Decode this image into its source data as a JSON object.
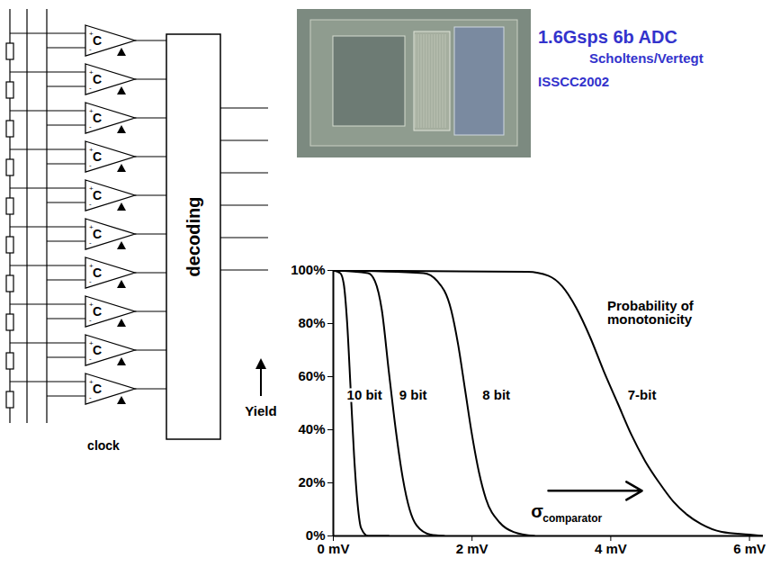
{
  "header": {
    "title": "1.6Gsps 6b ADC",
    "authors": "Scholtens/Vertegt",
    "venue": "ISSCC2002",
    "color": "#3333cc"
  },
  "diagram": {
    "comparators": [
      "C",
      "C",
      "C",
      "C",
      "C",
      "C",
      "C",
      "C",
      "C",
      "C"
    ],
    "inputs": [
      "+",
      "-"
    ],
    "block": "decoding",
    "clock": "clock",
    "outputs": 6
  },
  "chart_data": {
    "type": "line",
    "ylabel": "Yield",
    "xlim": [
      0,
      6.2
    ],
    "xticks": [
      {
        "value": 0,
        "label": "0 mV"
      },
      {
        "value": 2,
        "label": "2 mV"
      },
      {
        "value": 4,
        "label": "4 mV"
      },
      {
        "value": 6,
        "label": "6 mV"
      }
    ],
    "ylim": [
      0,
      100
    ],
    "yticks": [
      {
        "value": 0,
        "label": "0%"
      },
      {
        "value": 20,
        "label": "20%"
      },
      {
        "value": 40,
        "label": "40%"
      },
      {
        "value": 60,
        "label": "60%"
      },
      {
        "value": 80,
        "label": "80%"
      },
      {
        "value": 100,
        "label": "100%"
      }
    ],
    "grid": false,
    "series": [
      {
        "name": "10 bit",
        "color": "#000000",
        "x": [
          0,
          0.1,
          0.15,
          0.2,
          0.25,
          0.3,
          0.35,
          0.4,
          0.5,
          0.8
        ],
        "values": [
          100,
          99,
          95,
          80,
          55,
          30,
          12,
          3,
          0,
          0
        ],
        "label_x": 0.45,
        "label_y": 53
      },
      {
        "name": "9 bit",
        "color": "#000000",
        "x": [
          0,
          0.5,
          0.6,
          0.7,
          0.8,
          0.9,
          1.0,
          1.1,
          1.2,
          1.4,
          1.6
        ],
        "values": [
          100,
          99,
          96,
          85,
          62,
          40,
          22,
          10,
          4,
          0.5,
          0
        ],
        "label_x": 1.15,
        "label_y": 53
      },
      {
        "name": "8 bit",
        "color": "#000000",
        "x": [
          0,
          1.3,
          1.5,
          1.7,
          1.8,
          1.9,
          2.0,
          2.1,
          2.2,
          2.4,
          2.6,
          2.9
        ],
        "values": [
          100,
          99,
          96,
          85,
          72,
          55,
          38,
          24,
          14,
          5,
          1.5,
          0
        ],
        "label_x": 2.35,
        "label_y": 53
      },
      {
        "name": "7-bit",
        "color": "#000000",
        "x": [
          0,
          2.8,
          3.1,
          3.3,
          3.5,
          3.7,
          3.9,
          4.1,
          4.3,
          4.5,
          4.7,
          4.9,
          5.1,
          5.3,
          5.6,
          6.0,
          6.2
        ],
        "values": [
          100,
          99.5,
          98,
          94,
          86,
          75,
          62,
          50,
          38,
          28,
          20,
          13,
          8,
          4.5,
          1.5,
          0.5,
          0
        ],
        "label_x": 4.45,
        "label_y": 53
      }
    ],
    "annotations": [
      {
        "text": "Probability of monotonicity",
        "x": 3.95,
        "y": 84
      },
      {
        "text": "σ",
        "subscript": "comparator",
        "x": 2.85,
        "y": 9,
        "arrow": {
          "x1": 3.1,
          "x2": 4.45,
          "y": 17
        }
      }
    ]
  }
}
